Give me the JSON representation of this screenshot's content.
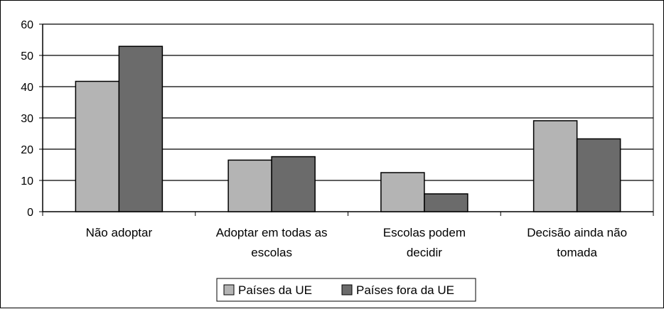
{
  "chart_data": {
    "type": "bar",
    "title": "",
    "xlabel": "",
    "ylabel": "",
    "ylim": [
      0,
      60
    ],
    "yticks": [
      0,
      10,
      20,
      30,
      40,
      50,
      60
    ],
    "grid": true,
    "legend_position": "bottom",
    "categories": [
      [
        "Não adoptar"
      ],
      [
        "Adoptar em todas as",
        "escolas"
      ],
      [
        "Escolas podem",
        "decidir"
      ],
      [
        "Decisão ainda não",
        "tomada"
      ]
    ],
    "series": [
      {
        "name": "Países da UE",
        "color": "#b4b4b4",
        "values": [
          41.7,
          16.5,
          12.5,
          29.1
        ]
      },
      {
        "name": "Países fora da UE",
        "color": "#6b6b6b",
        "values": [
          52.9,
          17.6,
          5.7,
          23.3
        ]
      }
    ]
  }
}
